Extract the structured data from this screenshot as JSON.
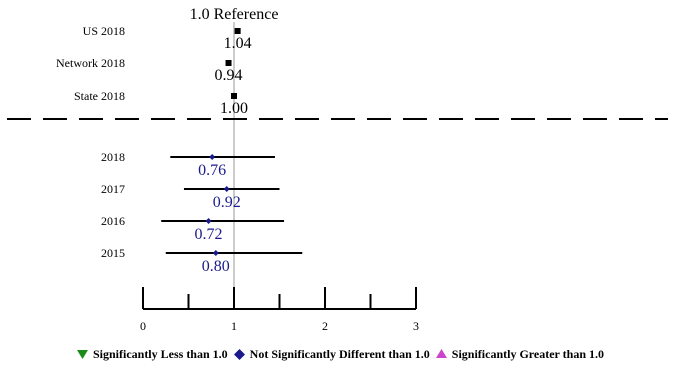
{
  "chart_data": {
    "type": "forest",
    "reference": {
      "value": 1.0,
      "label": "1.0 Reference"
    },
    "xlim": [
      0,
      3
    ],
    "x_ticks": [
      {
        "value": 0,
        "label": "0"
      },
      {
        "value": 0.5,
        "label": ""
      },
      {
        "value": 1,
        "label": "1"
      },
      {
        "value": 1.5,
        "label": ""
      },
      {
        "value": 2,
        "label": "2"
      },
      {
        "value": 2.5,
        "label": ""
      },
      {
        "value": 3,
        "label": "3"
      }
    ],
    "benchmarks": [
      {
        "label": "US 2018",
        "value": 1.04,
        "value_label": "1.04"
      },
      {
        "label": "Network 2018",
        "value": 0.94,
        "value_label": "0.94"
      },
      {
        "label": "State 2018",
        "value": 1.0,
        "value_label": "1.00"
      }
    ],
    "series": [
      {
        "label": "2018",
        "value": 0.76,
        "value_label": "0.76",
        "ci": [
          0.3,
          1.45
        ],
        "significance": "not-different"
      },
      {
        "label": "2017",
        "value": 0.92,
        "value_label": "0.92",
        "ci": [
          0.45,
          1.5
        ],
        "significance": "not-different"
      },
      {
        "label": "2016",
        "value": 0.72,
        "value_label": "0.72",
        "ci": [
          0.2,
          1.55
        ],
        "significance": "not-different"
      },
      {
        "label": "2015",
        "value": 0.8,
        "value_label": "0.80",
        "ci": [
          0.25,
          1.75
        ],
        "significance": "not-different"
      }
    ],
    "legend": [
      {
        "label": "Significantly Less than 1.0",
        "marker": "triangle-down",
        "color": "#1a8a1a"
      },
      {
        "label": "Not Significantly Different than 1.0",
        "marker": "diamond",
        "color": "#1a1a8c"
      },
      {
        "label": "Significantly Greater than 1.0",
        "marker": "triangle-up",
        "color": "#cc44cc"
      }
    ],
    "colors": {
      "benchmark_marker": "#000000",
      "value_label": "#1a1a8c",
      "reference_line": "#999999"
    }
  }
}
